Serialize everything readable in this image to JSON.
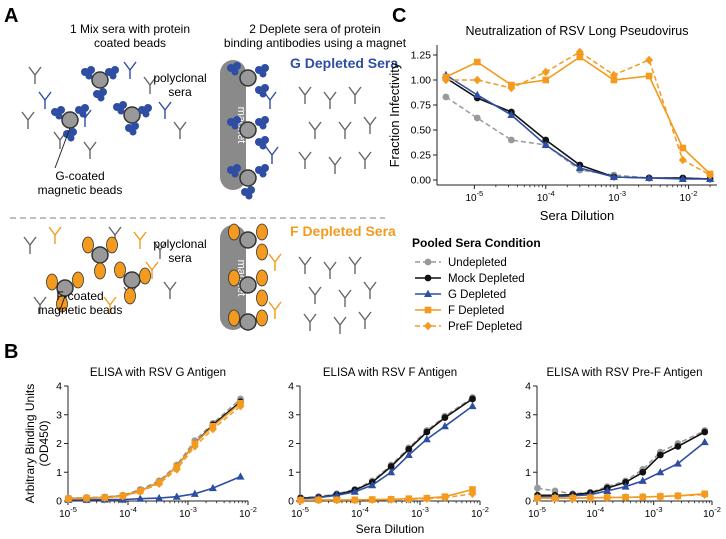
{
  "panel_labels": {
    "a": "A",
    "b": "B",
    "c": "C"
  },
  "colors": {
    "g": "#2e4ea3",
    "f": "#f39a1f",
    "undepleted": "#999999",
    "mock": "#111111",
    "antibody_gray": "#666666"
  },
  "panel_a": {
    "step1_line1": "1 Mix sera with protein",
    "step1_line2": "coated beads",
    "step2_line1": "2 Deplete sera of protein",
    "step2_line2": "binding antibodies using a magnet",
    "polyclonal_line1": "polyclonal",
    "polyclonal_line2": "sera",
    "g_depleted": "G Depleted Sera",
    "f_depleted": "F Depleted Sera",
    "g_beads_line1": "G-coated",
    "g_beads_line2": "magnetic beads",
    "f_beads_line1": "F-coated",
    "f_beads_line2": "magnetic beads",
    "magnet": "magnet"
  },
  "legend": {
    "title": "Pooled Sera Condition",
    "items": [
      "Undepleted",
      "Mock Depleted",
      "G Depleted",
      "F Depleted",
      "PreF Depleted"
    ]
  },
  "chart_data": [
    {
      "id": "neutralization",
      "type": "line",
      "title": "Neutralization of RSV Long Pseudovirus",
      "xlabel": "Sera Dilution",
      "ylabel": "Fraction Infectivity",
      "xscale": "log",
      "xlim": [
        3e-06,
        0.025
      ],
      "ylim": [
        -0.05,
        1.35
      ],
      "yticks": [
        "0.00",
        "0.25",
        "0.50",
        "0.75",
        "1.00",
        "1.25"
      ],
      "x": [
        4e-06,
        1.1e-05,
        3.3e-05,
        0.0001,
        0.0003,
        0.0009,
        0.0028,
        0.0083,
        0.02
      ],
      "series": [
        {
          "name": "Undepleted",
          "values": [
            0.83,
            0.62,
            0.4,
            0.35,
            0.1,
            0.05,
            0.02,
            0.02,
            0.01
          ]
        },
        {
          "name": "Mock Depleted",
          "values": [
            1.02,
            0.82,
            0.68,
            0.4,
            0.15,
            0.03,
            0.02,
            0.02,
            0.01
          ]
        },
        {
          "name": "G Depleted",
          "values": [
            1.05,
            0.85,
            0.65,
            0.35,
            0.12,
            0.03,
            0.02,
            0.01,
            0.01
          ]
        },
        {
          "name": "F Depleted",
          "values": [
            1.03,
            1.18,
            0.95,
            1.0,
            1.23,
            1.0,
            1.04,
            0.32,
            0.06
          ]
        },
        {
          "name": "PreF Depleted",
          "values": [
            1.0,
            1.0,
            0.92,
            1.08,
            1.28,
            1.05,
            1.2,
            0.2,
            0.05
          ]
        }
      ]
    },
    {
      "id": "elisa-g",
      "type": "line",
      "title": "ELISA with RSV G Antigen",
      "xlabel": "",
      "ylabel": "Arbitrary Binding Units (OD450)",
      "xscale": "log",
      "xlim": [
        1e-05,
        0.01
      ],
      "ylim": [
        0,
        4
      ],
      "yticks": [
        "0",
        "1",
        "2",
        "3",
        "4"
      ],
      "x": [
        1.02e-05,
        2.04e-05,
        4.1e-05,
        8.2e-05,
        0.00016,
        0.00033,
        0.00065,
        0.0013,
        0.0026,
        0.0075
      ],
      "series": [
        {
          "name": "Undepleted",
          "values": [
            0.1,
            0.12,
            0.14,
            0.2,
            0.4,
            0.7,
            1.25,
            2.1,
            2.7,
            3.55
          ]
        },
        {
          "name": "Mock Depleted",
          "values": [
            0.08,
            0.1,
            0.12,
            0.18,
            0.35,
            0.65,
            1.2,
            2.0,
            2.65,
            3.45
          ]
        },
        {
          "name": "G Depleted",
          "values": [
            0.04,
            0.04,
            0.05,
            0.05,
            0.08,
            0.1,
            0.15,
            0.25,
            0.45,
            0.85
          ]
        },
        {
          "name": "F Depleted",
          "values": [
            0.08,
            0.1,
            0.12,
            0.18,
            0.35,
            0.65,
            1.2,
            2.0,
            2.6,
            3.4
          ]
        },
        {
          "name": "PreF Depleted",
          "values": [
            0.07,
            0.09,
            0.11,
            0.16,
            0.33,
            0.6,
            1.1,
            1.9,
            2.5,
            3.3
          ]
        }
      ]
    },
    {
      "id": "elisa-f",
      "type": "line",
      "title": "ELISA with RSV F Antigen",
      "xlabel": "Sera Dilution",
      "ylabel": "",
      "xscale": "log",
      "xlim": [
        1e-05,
        0.01
      ],
      "ylim": [
        0,
        4
      ],
      "yticks": [
        "0",
        "1",
        "2",
        "3",
        "4"
      ],
      "x": [
        1.02e-05,
        2.04e-05,
        4.1e-05,
        8.2e-05,
        0.00016,
        0.00033,
        0.00065,
        0.0013,
        0.0026,
        0.0075
      ],
      "series": [
        {
          "name": "Undepleted",
          "values": [
            0.12,
            0.15,
            0.25,
            0.4,
            0.7,
            1.25,
            1.85,
            2.45,
            2.95,
            3.6
          ]
        },
        {
          "name": "Mock Depleted",
          "values": [
            0.1,
            0.13,
            0.22,
            0.38,
            0.65,
            1.2,
            1.8,
            2.4,
            2.9,
            3.55
          ]
        },
        {
          "name": "G Depleted",
          "values": [
            0.08,
            0.12,
            0.2,
            0.32,
            0.55,
            1.0,
            1.6,
            2.15,
            2.6,
            3.3
          ]
        },
        {
          "name": "F Depleted",
          "values": [
            0.03,
            0.04,
            0.04,
            0.04,
            0.05,
            0.06,
            0.08,
            0.1,
            0.15,
            0.4
          ]
        },
        {
          "name": "PreF Depleted",
          "values": [
            0.02,
            0.03,
            0.03,
            0.03,
            0.04,
            0.05,
            0.06,
            0.08,
            0.12,
            0.25
          ]
        }
      ]
    },
    {
      "id": "elisa-pref",
      "type": "line",
      "title": "ELISA with RSV Pre-F Antigen",
      "xlabel": "",
      "ylabel": "",
      "xscale": "log",
      "xlim": [
        1e-05,
        0.01
      ],
      "ylim": [
        0,
        4
      ],
      "yticks": [
        "0",
        "1",
        "2",
        "3",
        "4"
      ],
      "x": [
        1.02e-05,
        2.04e-05,
        4.1e-05,
        8.2e-05,
        0.00016,
        0.00033,
        0.00065,
        0.0013,
        0.0026,
        0.0075
      ],
      "series": [
        {
          "name": "Undepleted",
          "values": [
            0.45,
            0.35,
            0.25,
            0.3,
            0.5,
            0.7,
            1.1,
            1.7,
            2.0,
            2.45
          ]
        },
        {
          "name": "Mock Depleted",
          "values": [
            0.2,
            0.2,
            0.22,
            0.28,
            0.45,
            0.65,
            1.0,
            1.6,
            1.9,
            2.4
          ]
        },
        {
          "name": "G Depleted",
          "values": [
            0.15,
            0.15,
            0.18,
            0.22,
            0.35,
            0.5,
            0.7,
            1.0,
            1.3,
            2.05
          ]
        },
        {
          "name": "F Depleted",
          "values": [
            0.1,
            0.1,
            0.1,
            0.11,
            0.12,
            0.13,
            0.14,
            0.16,
            0.18,
            0.25
          ]
        },
        {
          "name": "PreF Depleted",
          "values": [
            0.1,
            0.1,
            0.1,
            0.11,
            0.12,
            0.13,
            0.14,
            0.16,
            0.18,
            0.22
          ]
        }
      ]
    }
  ]
}
